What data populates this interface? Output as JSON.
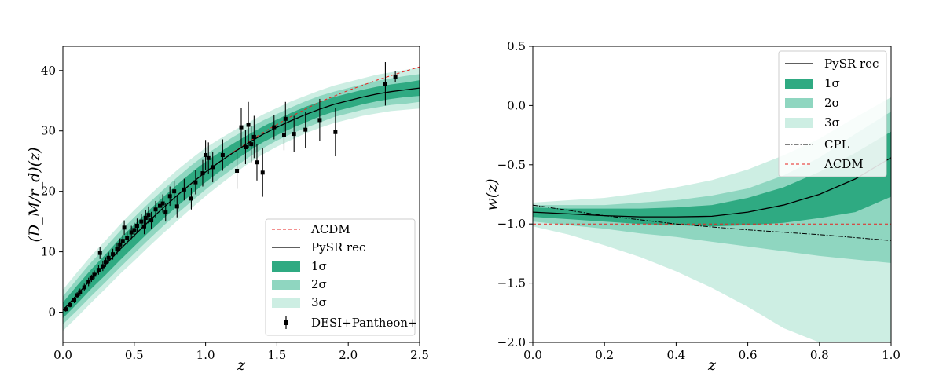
{
  "chart_data": [
    {
      "type": "line",
      "xlabel": "z",
      "ylabel": "(D_M/r_d)(z)",
      "xlim": [
        0,
        2.5
      ],
      "ylim": [
        -5,
        44
      ],
      "xticks": [
        0.0,
        0.5,
        1.0,
        1.5,
        2.0,
        2.5
      ],
      "xtick_labels": [
        "0.0",
        "0.5",
        "1.0",
        "1.5",
        "2.0",
        "2.5"
      ],
      "yticks": [
        0,
        10,
        20,
        30,
        40
      ],
      "ytick_labels": [
        "0",
        "10",
        "20",
        "30",
        "40"
      ],
      "legend_position": "lower-right",
      "legend": [
        {
          "label": "ΛCDM",
          "style": "red-dashed-line"
        },
        {
          "label": "PySR rec",
          "style": "black-solid-line"
        },
        {
          "label": "1σ",
          "style": "dark-band"
        },
        {
          "label": "2σ",
          "style": "medium-band"
        },
        {
          "label": "3σ",
          "style": "light-band"
        },
        {
          "label": "DESI+Pantheon+",
          "style": "black-square-errorbar"
        }
      ],
      "series": [
        {
          "name": "PySR rec",
          "x": [
            0,
            0.1,
            0.2,
            0.3,
            0.4,
            0.5,
            0.6,
            0.7,
            0.8,
            0.9,
            1.0,
            1.1,
            1.2,
            1.3,
            1.4,
            1.5,
            1.6,
            1.7,
            1.8,
            1.9,
            2.0,
            2.1,
            2.2,
            2.3,
            2.4,
            2.5
          ],
          "y": [
            0.3,
            2.9,
            5.5,
            7.9,
            10.4,
            12.7,
            15.0,
            17.2,
            19.3,
            21.3,
            23.2,
            24.9,
            26.5,
            28.0,
            29.4,
            30.6,
            31.7,
            32.7,
            33.6,
            34.4,
            35.0,
            35.6,
            36.1,
            36.5,
            36.8,
            37.1
          ],
          "band_1sigma": [
            1.3,
            1.5,
            1.6,
            1.7,
            1.8,
            1.8,
            1.8,
            1.8,
            1.8,
            1.8,
            1.7,
            1.6,
            1.5,
            1.4,
            1.3,
            1.3,
            1.3,
            1.3,
            1.2,
            1.2,
            1.2,
            1.2,
            1.2,
            1.2,
            1.2,
            1.3
          ],
          "band_2sigma": [
            2.3,
            2.6,
            2.8,
            2.9,
            3.0,
            3.0,
            3.0,
            3.0,
            3.0,
            3.0,
            2.9,
            2.7,
            2.6,
            2.4,
            2.3,
            2.2,
            2.2,
            2.2,
            2.2,
            2.1,
            2.1,
            2.1,
            2.2,
            2.2,
            2.3,
            2.3
          ],
          "band_3sigma": [
            3.4,
            3.7,
            3.9,
            4.0,
            4.1,
            4.2,
            4.2,
            4.2,
            4.2,
            4.1,
            4.0,
            3.8,
            3.6,
            3.4,
            3.3,
            3.2,
            3.2,
            3.1,
            3.1,
            3.1,
            3.1,
            3.1,
            3.2,
            3.2,
            3.3,
            3.4
          ]
        },
        {
          "name": "ΛCDM",
          "x": [
            0.8,
            1.0,
            1.2,
            1.4,
            1.6,
            1.8,
            2.0,
            2.2,
            2.4,
            2.5
          ],
          "y": [
            19.3,
            23.2,
            26.6,
            29.7,
            32.4,
            34.8,
            36.7,
            38.4,
            39.9,
            40.6
          ]
        }
      ],
      "scatter": {
        "name": "DESI+Pantheon+",
        "points": [
          [
            0.02,
            0.5,
            0.4
          ],
          [
            0.05,
            1.2,
            0.4
          ],
          [
            0.08,
            2.0,
            0.5
          ],
          [
            0.1,
            2.8,
            0.5
          ],
          [
            0.12,
            3.3,
            0.6
          ],
          [
            0.15,
            4.1,
            0.6
          ],
          [
            0.18,
            5.0,
            0.7
          ],
          [
            0.2,
            5.6,
            0.6
          ],
          [
            0.22,
            6.2,
            0.7
          ],
          [
            0.25,
            7.0,
            0.8
          ],
          [
            0.26,
            9.8,
            1.0
          ],
          [
            0.28,
            7.6,
            0.8
          ],
          [
            0.3,
            8.3,
            0.8
          ],
          [
            0.32,
            9.0,
            0.9
          ],
          [
            0.35,
            9.6,
            0.9
          ],
          [
            0.38,
            10.5,
            1.0
          ],
          [
            0.4,
            11.2,
            1.0
          ],
          [
            0.42,
            11.8,
            1.0
          ],
          [
            0.43,
            14.0,
            1.2
          ],
          [
            0.45,
            12.3,
            1.1
          ],
          [
            0.48,
            13.2,
            1.1
          ],
          [
            0.5,
            13.6,
            1.2
          ],
          [
            0.52,
            14.3,
            1.2
          ],
          [
            0.55,
            15.0,
            1.3
          ],
          [
            0.57,
            14.2,
            1.3
          ],
          [
            0.58,
            15.6,
            1.3
          ],
          [
            0.6,
            16.1,
            1.4
          ],
          [
            0.62,
            15.2,
            1.4
          ],
          [
            0.65,
            17.0,
            1.4
          ],
          [
            0.68,
            17.6,
            1.5
          ],
          [
            0.7,
            18.0,
            1.5
          ],
          [
            0.72,
            16.5,
            1.5
          ],
          [
            0.75,
            19.2,
            1.6
          ],
          [
            0.78,
            20.0,
            1.7
          ],
          [
            0.8,
            17.5,
            1.8
          ],
          [
            0.85,
            20.3,
            1.8
          ],
          [
            0.9,
            18.8,
            1.8
          ],
          [
            0.93,
            21.5,
            2.0
          ],
          [
            0.98,
            23.0,
            2.2
          ],
          [
            1.0,
            26.0,
            2.5
          ],
          [
            1.02,
            25.5,
            2.6
          ],
          [
            1.05,
            24.0,
            2.5
          ],
          [
            1.12,
            26.0,
            2.6
          ],
          [
            1.22,
            23.4,
            3.0
          ],
          [
            1.25,
            30.6,
            3.2
          ],
          [
            1.28,
            27.3,
            2.8
          ],
          [
            1.3,
            31.0,
            3.8
          ],
          [
            1.32,
            27.8,
            3.0
          ],
          [
            1.34,
            29.0,
            3.5
          ],
          [
            1.36,
            24.8,
            3.0
          ],
          [
            1.4,
            23.1,
            4.0
          ],
          [
            1.48,
            30.6,
            2.0
          ],
          [
            1.55,
            29.3,
            2.5
          ],
          [
            1.56,
            32.0,
            2.8
          ],
          [
            1.62,
            29.5,
            3.0
          ],
          [
            1.7,
            30.2,
            3.0
          ],
          [
            1.8,
            31.8,
            3.5
          ],
          [
            1.91,
            29.8,
            4.0
          ],
          [
            2.26,
            37.8,
            3.6
          ],
          [
            2.33,
            39.0,
            0.9
          ]
        ]
      }
    },
    {
      "type": "line",
      "xlabel": "z",
      "ylabel": "w(z)",
      "xlim": [
        0,
        1.0
      ],
      "ylim": [
        -2.0,
        0.5
      ],
      "xticks": [
        0.0,
        0.2,
        0.4,
        0.6,
        0.8,
        1.0
      ],
      "xtick_labels": [
        "0.0",
        "0.2",
        "0.4",
        "0.6",
        "0.8",
        "1.0"
      ],
      "yticks": [
        -2.0,
        -1.5,
        -1.0,
        -0.5,
        0.0,
        0.5
      ],
      "ytick_labels": [
        "−2.0",
        "−1.5",
        "−1.0",
        "−0.5",
        "0.0",
        "0.5"
      ],
      "legend_position": "top-right",
      "legend": [
        {
          "label": "PySR rec",
          "style": "black-solid-line"
        },
        {
          "label": "1σ",
          "style": "dark-band"
        },
        {
          "label": "2σ",
          "style": "medium-band"
        },
        {
          "label": "3σ",
          "style": "light-band"
        },
        {
          "label": "CPL",
          "style": "black-dashdot-line"
        },
        {
          "label": "ΛCDM",
          "style": "red-dashed-line"
        }
      ],
      "series": [
        {
          "name": "PySR rec",
          "x": [
            0,
            0.1,
            0.2,
            0.3,
            0.4,
            0.5,
            0.6,
            0.7,
            0.8,
            0.9,
            1.0
          ],
          "y": [
            -0.9,
            -0.915,
            -0.93,
            -0.94,
            -0.94,
            -0.935,
            -0.9,
            -0.84,
            -0.75,
            -0.62,
            -0.44
          ],
          "band_1sigma": [
            [
              -0.94,
              -0.86
            ],
            [
              -0.96,
              -0.87
            ],
            [
              -0.98,
              -0.87
            ],
            [
              -1.0,
              -0.87
            ],
            [
              -1.01,
              -0.86
            ],
            [
              -1.02,
              -0.84
            ],
            [
              -1.01,
              -0.78
            ],
            [
              -0.99,
              -0.69
            ],
            [
              -0.95,
              -0.56
            ],
            [
              -0.9,
              -0.4
            ],
            [
              -0.77,
              -0.22
            ]
          ],
          "band_2sigma": [
            [
              -0.98,
              -0.84
            ],
            [
              -1.01,
              -0.84
            ],
            [
              -1.04,
              -0.84
            ],
            [
              -1.08,
              -0.82
            ],
            [
              -1.11,
              -0.8
            ],
            [
              -1.15,
              -0.76
            ],
            [
              -1.19,
              -0.7
            ],
            [
              -1.23,
              -0.59
            ],
            [
              -1.27,
              -0.44
            ],
            [
              -1.3,
              -0.24
            ],
            [
              -1.33,
              -0.05
            ]
          ],
          "band_3sigma": [
            [
              -1.02,
              -0.82
            ],
            [
              -1.09,
              -0.8
            ],
            [
              -1.18,
              -0.78
            ],
            [
              -1.28,
              -0.74
            ],
            [
              -1.4,
              -0.69
            ],
            [
              -1.54,
              -0.63
            ],
            [
              -1.7,
              -0.54
            ],
            [
              -1.88,
              -0.42
            ],
            [
              -2.0,
              -0.28
            ],
            [
              -2.0,
              -0.1
            ],
            [
              -2.0,
              0.07
            ]
          ]
        },
        {
          "name": "CPL",
          "x": [
            0,
            0.2,
            0.4,
            0.6,
            0.8,
            1.0
          ],
          "y": [
            -0.84,
            -0.93,
            -1.0,
            -1.05,
            -1.09,
            -1.14
          ]
        },
        {
          "name": "ΛCDM",
          "x": [
            0,
            1.0
          ],
          "y": [
            -1.0,
            -1.0
          ]
        }
      ]
    }
  ]
}
